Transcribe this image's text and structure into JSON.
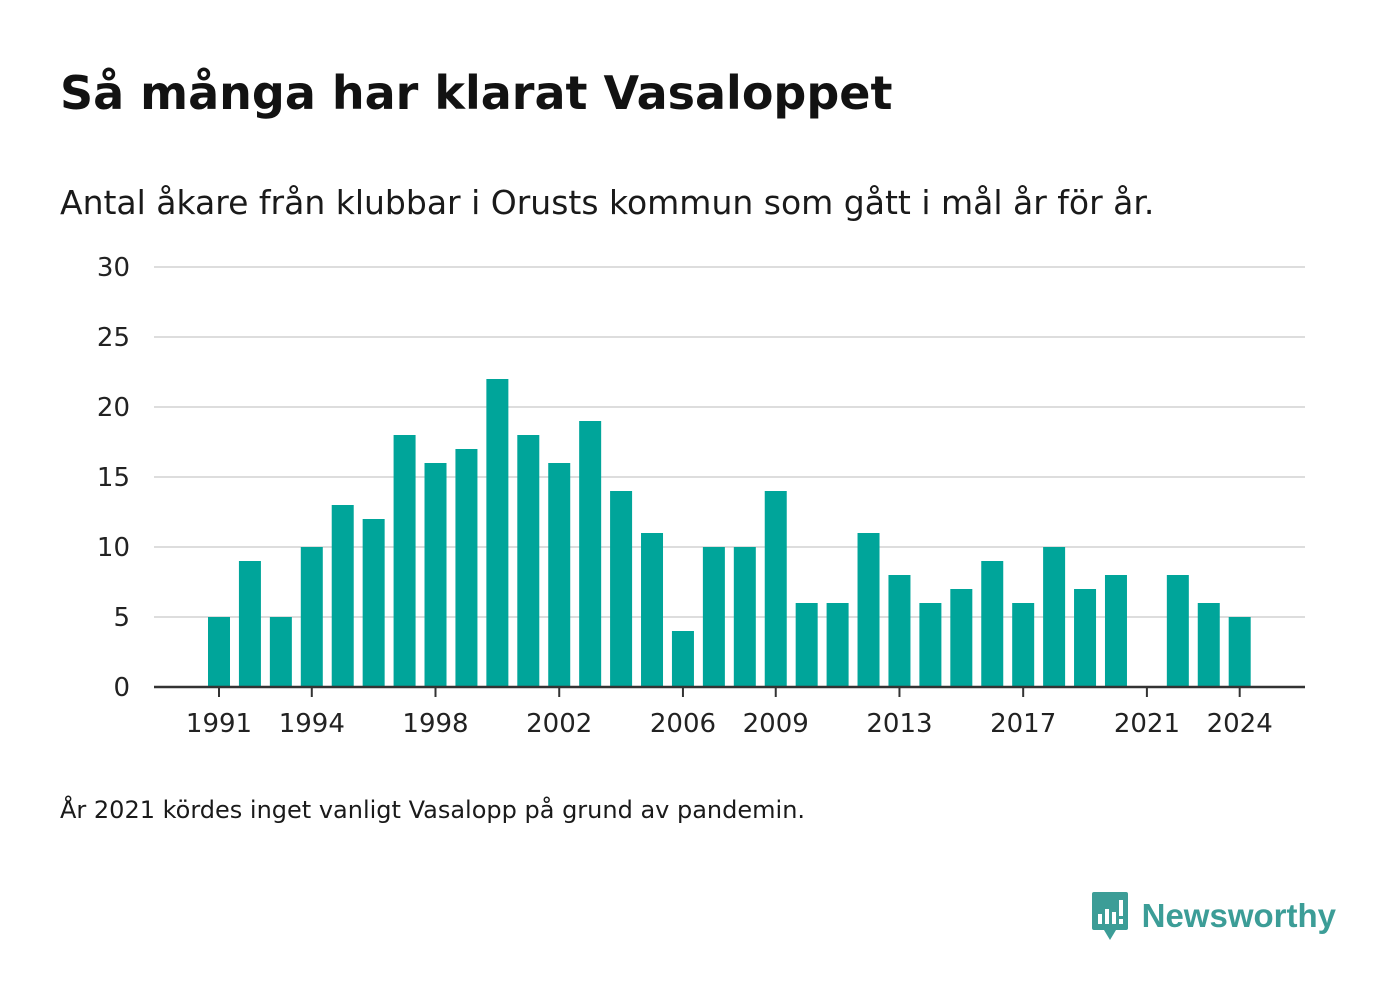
{
  "header": {
    "title": "Så många har klarat Vasaloppet",
    "subtitle": "Antal åkare från klubbar i Orusts kommun som gått i mål år för år."
  },
  "footer": {
    "note": "År 2021 kördes inget vanligt Vasalopp på grund av pandemin.",
    "brand": "Newsworthy"
  },
  "colors": {
    "bar": "#00a59a",
    "grid": "#dddddd",
    "axis": "#333333",
    "brand": "#3c9d97"
  },
  "chart_data": {
    "type": "bar",
    "categories": [
      1991,
      1992,
      1993,
      1994,
      1995,
      1996,
      1997,
      1998,
      1999,
      2000,
      2001,
      2002,
      2003,
      2004,
      2005,
      2006,
      2007,
      2008,
      2009,
      2010,
      2011,
      2012,
      2013,
      2014,
      2015,
      2016,
      2017,
      2018,
      2019,
      2020,
      2021,
      2022,
      2023,
      2024
    ],
    "values": [
      5,
      9,
      5,
      10,
      13,
      12,
      18,
      16,
      17,
      22,
      18,
      16,
      19,
      14,
      11,
      4,
      10,
      10,
      14,
      6,
      6,
      11,
      8,
      6,
      7,
      9,
      6,
      10,
      7,
      8,
      null,
      8,
      6,
      5
    ],
    "x_tick_labels": [
      "1991",
      "1994",
      "1998",
      "2002",
      "2006",
      "2009",
      "2013",
      "2017",
      "2021",
      "2024"
    ],
    "y_ticks": [
      0,
      5,
      10,
      15,
      20,
      25,
      30
    ],
    "ylim": [
      0,
      30
    ],
    "grid": true,
    "legend": "none"
  }
}
